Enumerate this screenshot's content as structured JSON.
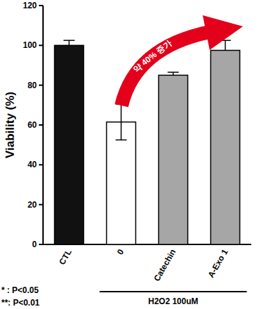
{
  "chart_data": {
    "type": "bar",
    "y_label": "Viability (%)",
    "categories": [
      "CTL",
      "0",
      "Catechin",
      "A-Exo 1"
    ],
    "values": [
      100,
      61.5,
      85,
      97.5
    ],
    "errors": [
      2.5,
      9,
      1.5,
      5
    ],
    "colors": [
      "#111111",
      "#ffffff",
      "#a6a6a6",
      "#a6a6a6"
    ],
    "ylim": [
      0,
      120
    ],
    "yticks": [
      0,
      20,
      40,
      60,
      80,
      100,
      120
    ],
    "annotations": [
      "약 40% 증가",
      "* : P<0.05",
      "**: P<0.01",
      "H2O2 100uM"
    ]
  }
}
